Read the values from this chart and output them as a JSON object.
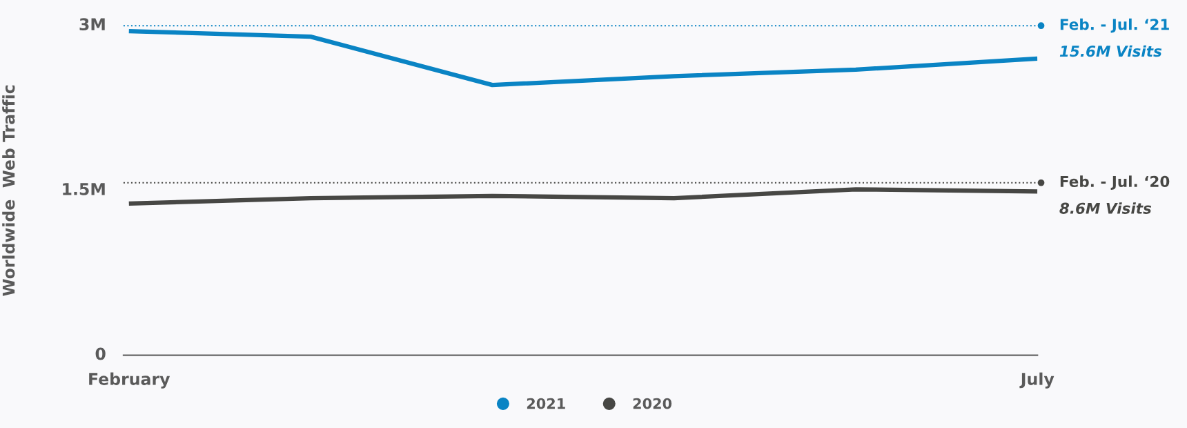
{
  "chart_data": {
    "type": "line",
    "ylabel": "Worldwide  Web Traffic",
    "categories": [
      "February",
      null,
      null,
      null,
      null,
      "July"
    ],
    "series": [
      {
        "name": "2021",
        "color": "#0a84c4",
        "values": [
          2.95,
          2.9,
          2.46,
          2.54,
          2.6,
          2.7
        ]
      },
      {
        "name": "2020",
        "color": "#474744",
        "values": [
          1.38,
          1.43,
          1.45,
          1.43,
          1.51,
          1.49
        ]
      }
    ],
    "ylim": [
      0,
      3
    ],
    "yticks": [
      {
        "value": 0,
        "label": "0"
      },
      {
        "value": 1.5,
        "label": "1.5M"
      },
      {
        "value": 3,
        "label": "3M"
      }
    ],
    "ref_lines": [
      {
        "axis": "y",
        "value": 3.0,
        "label": "Feb. - Jul. ‘21",
        "color": "#0a84c4",
        "line_style": "dotted"
      },
      {
        "axis": "y",
        "value": 1.57,
        "label": "Feb. - Jul. ‘20",
        "color": "#474744",
        "line_style": "dotted"
      }
    ],
    "annotations": [
      "15.6M Visits",
      "8.6M Visits"
    ],
    "grid": false,
    "legend": "bottom",
    "marker": "none",
    "line_style": "solid"
  }
}
